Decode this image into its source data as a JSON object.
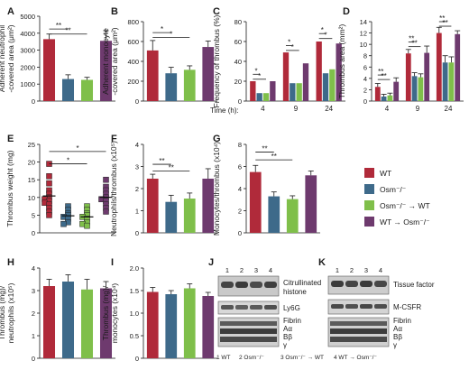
{
  "colors": {
    "WT": "#b02a3a",
    "Osm-/-": "#3e6a8a",
    "Osm-/- -> WT": "#7fbf4a",
    "WT -> Osm-/-": "#6e3a6e",
    "axis": "#1a1a1a"
  },
  "legend": {
    "items": [
      {
        "key": "WT",
        "label": "WT"
      },
      {
        "key": "Osm-/-",
        "label": "Osm⁻/⁻"
      },
      {
        "key": "Osm-/- -> WT",
        "label": "Osm⁻/⁻ → WT"
      },
      {
        "key": "WT -> Osm-/-",
        "label": "WT → Osm⁻/⁻"
      }
    ]
  },
  "chart_data": [
    {
      "panel": "A",
      "type": "bar",
      "ylabel": [
        "Adherent neutrophil",
        "-covered area (μm²)"
      ],
      "ylim": [
        0,
        5000
      ],
      "yticks": [
        0,
        1000,
        2000,
        3000,
        4000,
        5000
      ],
      "values": [
        3650,
        1300,
        1250,
        3550
      ],
      "errors": [
        300,
        250,
        150,
        600
      ],
      "sig": [
        {
          "from": 0,
          "to": 1,
          "y": 4250,
          "label": "**"
        },
        {
          "from": 0,
          "to": 2,
          "y": 3950,
          "label": "**"
        }
      ]
    },
    {
      "panel": "B",
      "type": "bar",
      "ylabel": [
        "Adherent monocyte",
        "-covered area (μm²)"
      ],
      "ylim": [
        0,
        800
      ],
      "yticks": [
        0,
        200,
        400,
        600,
        800
      ],
      "values": [
        510,
        280,
        315,
        545
      ],
      "errors": [
        100,
        60,
        40,
        60
      ],
      "sig": [
        {
          "from": 0,
          "to": 1,
          "y": 690,
          "label": "*"
        },
        {
          "from": 0,
          "to": 2,
          "y": 640,
          "label": "*"
        }
      ]
    },
    {
      "panel": "C",
      "type": "bar",
      "ylabel": [
        "Frequency of thrombus (%)"
      ],
      "xlabel": "Time (h):",
      "ylim": [
        0,
        80
      ],
      "yticks": [
        0,
        20,
        40,
        60,
        80
      ],
      "categories": [
        "4",
        "9",
        "24"
      ],
      "series": [
        {
          "key": "WT",
          "values": [
            20,
            49,
            60
          ]
        },
        {
          "key": "Osm-/-",
          "values": [
            8,
            18,
            28
          ]
        },
        {
          "key": "Osm-/- -> WT",
          "values": [
            8,
            18,
            32
          ]
        },
        {
          "key": "WT -> Osm-/-",
          "values": [
            20,
            38,
            58
          ]
        }
      ],
      "sig": [
        {
          "group": 0,
          "from": 0,
          "to": 1,
          "y": 27,
          "label": "*"
        },
        {
          "group": 0,
          "from": 0,
          "to": 2,
          "y": 22,
          "label": "*"
        },
        {
          "group": 1,
          "from": 0,
          "to": 1,
          "y": 56,
          "label": "*"
        },
        {
          "group": 1,
          "from": 0,
          "to": 2,
          "y": 51,
          "label": "*"
        },
        {
          "group": 2,
          "from": 0,
          "to": 1,
          "y": 68,
          "label": "*"
        },
        {
          "group": 2,
          "from": 0,
          "to": 2,
          "y": 63,
          "label": "*"
        }
      ]
    },
    {
      "panel": "D",
      "type": "bar",
      "ylabel": [
        "Thrombus area (mm²)"
      ],
      "ylim": [
        0,
        14
      ],
      "yticks": [
        0,
        2,
        4,
        6,
        8,
        10,
        12,
        14
      ],
      "categories": [
        "4",
        "9",
        "24"
      ],
      "series": [
        {
          "key": "WT",
          "values": [
            2.5,
            8.4,
            12.0
          ],
          "errors": [
            0.6,
            0.7,
            1.0
          ]
        },
        {
          "key": "Osm-/-",
          "values": [
            0.8,
            4.4,
            6.8
          ],
          "errors": [
            0.4,
            0.6,
            1.2
          ]
        },
        {
          "key": "Osm-/- -> WT",
          "values": [
            1.0,
            4.2,
            6.8
          ],
          "errors": [
            0.4,
            0.6,
            1.0
          ]
        },
        {
          "key": "WT -> Osm-/-",
          "values": [
            3.4,
            8.5,
            11.8
          ],
          "errors": [
            0.7,
            1.2,
            0.6
          ]
        }
      ],
      "sig": [
        {
          "group": 0,
          "from": 0,
          "to": 1,
          "y": 4.6,
          "label": "**"
        },
        {
          "group": 0,
          "from": 0,
          "to": 2,
          "y": 3.8,
          "label": "**"
        },
        {
          "group": 1,
          "from": 0,
          "to": 1,
          "y": 10.4,
          "label": "**"
        },
        {
          "group": 1,
          "from": 0,
          "to": 2,
          "y": 9.6,
          "label": "**"
        },
        {
          "group": 2,
          "from": 0,
          "to": 1,
          "y": 14.0,
          "label": "**"
        },
        {
          "group": 2,
          "from": 0,
          "to": 2,
          "y": 13.2,
          "label": "**"
        }
      ]
    },
    {
      "panel": "E",
      "type": "scatter",
      "ylabel": [
        "Thrombus weight (mg)"
      ],
      "ylim": [
        0,
        25
      ],
      "yticks": [
        0,
        5,
        10,
        15,
        20,
        25
      ],
      "points": [
        [
          19.5,
          16,
          14,
          12,
          11,
          10,
          9.5,
          9,
          8.5,
          8,
          7,
          6,
          5
        ],
        [
          7.5,
          6.5,
          5.5,
          5,
          4.5,
          4,
          3,
          2.5
        ],
        [
          7.5,
          6.5,
          5.5,
          5,
          4.5,
          4,
          3,
          2.5,
          2
        ],
        [
          15,
          13,
          12,
          11,
          10,
          9.5,
          9,
          8,
          7,
          6
        ]
      ],
      "sig": [
        {
          "from": 0,
          "to": 2,
          "y": 19.5,
          "label": "*"
        },
        {
          "from": 0,
          "to": 3,
          "y": 23,
          "label": "*"
        }
      ]
    },
    {
      "panel": "F",
      "type": "bar",
      "ylabel": [
        "Neutrophils/thrombus (x10⁵)"
      ],
      "ylim": [
        0,
        4
      ],
      "yticks": [
        0,
        1,
        2,
        3,
        4
      ],
      "values": [
        2.45,
        1.4,
        1.55,
        2.45
      ],
      "errors": [
        0.2,
        0.3,
        0.25,
        0.45
      ],
      "sig": [
        {
          "from": 0,
          "to": 1,
          "y": 3.1,
          "label": "**"
        },
        {
          "from": 0,
          "to": 2,
          "y": 2.8,
          "label": "**"
        }
      ]
    },
    {
      "panel": "G",
      "type": "bar",
      "ylabel": [
        "Monocytes/thrombus (x10⁴)"
      ],
      "ylim": [
        0,
        8
      ],
      "yticks": [
        0,
        2,
        4,
        6,
        8
      ],
      "values": [
        5.5,
        3.3,
        3.05,
        5.2
      ],
      "errors": [
        0.6,
        0.4,
        0.3,
        0.4
      ],
      "sig": [
        {
          "from": 0,
          "to": 1,
          "y": 7.3,
          "label": "**"
        },
        {
          "from": 0,
          "to": 2,
          "y": 6.6,
          "label": "**"
        }
      ]
    },
    {
      "panel": "H",
      "type": "bar",
      "ylabel": [
        "Thrombus (mg)/",
        "neutrophils (x10⁵)"
      ],
      "ylim": [
        0,
        4
      ],
      "yticks": [
        0,
        1,
        2,
        3,
        4
      ],
      "values": [
        3.2,
        3.4,
        3.05,
        3.1
      ],
      "errors": [
        0.3,
        0.3,
        0.45,
        0.3
      ],
      "sig": []
    },
    {
      "panel": "I",
      "type": "bar",
      "ylabel": [
        "Thrombus (mg)/",
        "monocytes (x10⁴)"
      ],
      "ylim": [
        0,
        2.0
      ],
      "yticks": [
        0,
        0.5,
        1.0,
        1.5,
        2.0
      ],
      "yticklabels": [
        "0",
        "0.5",
        "1.0",
        "1.5",
        "2.0"
      ],
      "values": [
        1.47,
        1.42,
        1.55,
        1.38
      ],
      "errors": [
        0.1,
        0.08,
        0.1,
        0.08
      ],
      "sig": []
    }
  ],
  "blots": {
    "J": {
      "lanes": [
        "1",
        "2",
        "3",
        "4"
      ],
      "labels": [
        "Citrullinated",
        "histone",
        "Ly6G",
        "Fibrin",
        "Aα",
        "Bβ",
        "γ"
      ],
      "caption": [
        "1 WT",
        "2 Osm⁻/⁻",
        "3 Osm⁻/⁻ → WT",
        "4 WT → Osm⁻/⁻"
      ]
    },
    "K": {
      "lanes": [
        "1",
        "2",
        "3",
        "4"
      ],
      "labels": [
        "Tissue factor",
        "M-CSFR",
        "Fibrin",
        "Aα",
        "Bβ",
        "γ"
      ]
    }
  }
}
